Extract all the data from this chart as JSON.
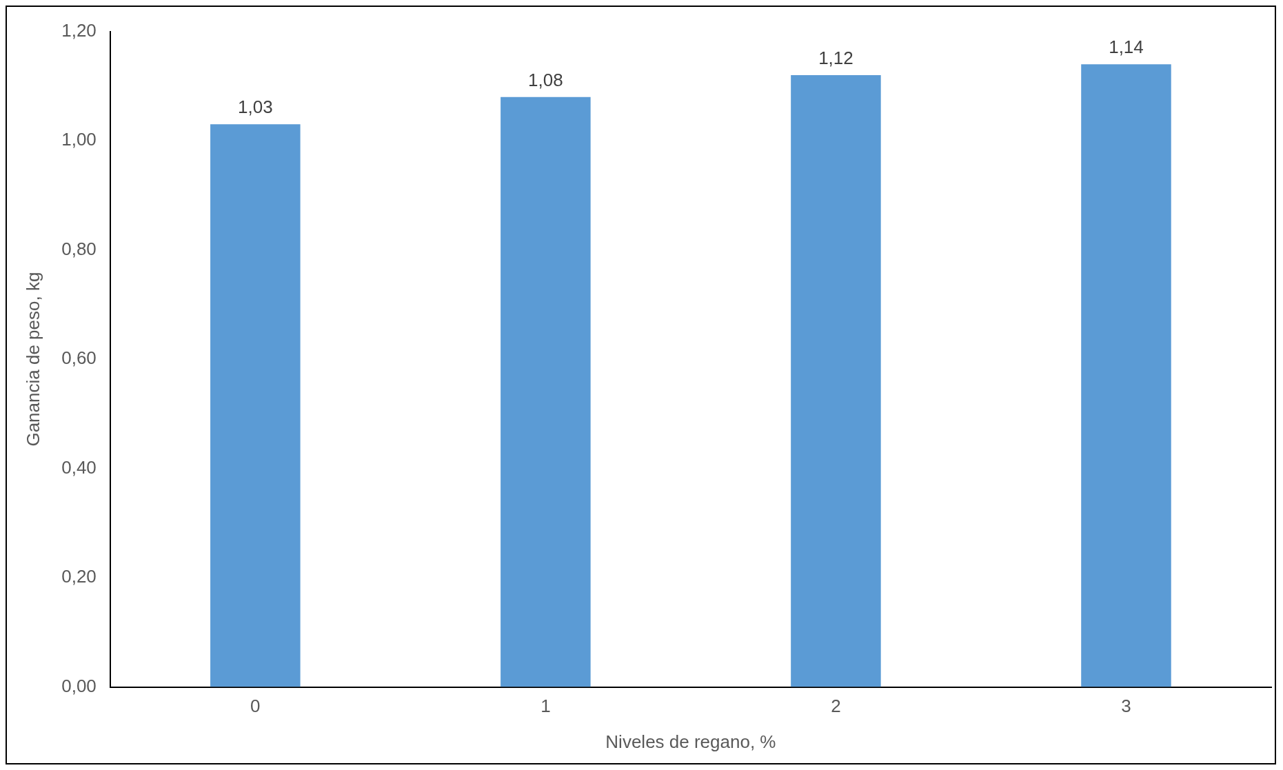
{
  "chart_data": {
    "type": "bar",
    "xlabel": "Niveles de regano, %",
    "ylabel": "Ganancia de peso, kg",
    "categories": [
      "0",
      "1",
      "2",
      "3"
    ],
    "values": [
      1.03,
      1.08,
      1.12,
      1.14
    ],
    "value_labels": [
      "1,03",
      "1,08",
      "1,12",
      "1,14"
    ],
    "color": "#5b9bd5",
    "ylim": [
      0,
      1.2
    ],
    "yticks": [
      {
        "value": 0,
        "label": "0,00"
      },
      {
        "value": 0.2,
        "label": "0,20"
      },
      {
        "value": 0.4,
        "label": "0,40"
      },
      {
        "value": 0.6,
        "label": "0,60"
      },
      {
        "value": 0.8,
        "label": "0,80"
      },
      {
        "value": 1.0,
        "label": "1,00"
      },
      {
        "value": 1.2,
        "label": "1,20"
      }
    ],
    "grid": false,
    "legend": false
  }
}
